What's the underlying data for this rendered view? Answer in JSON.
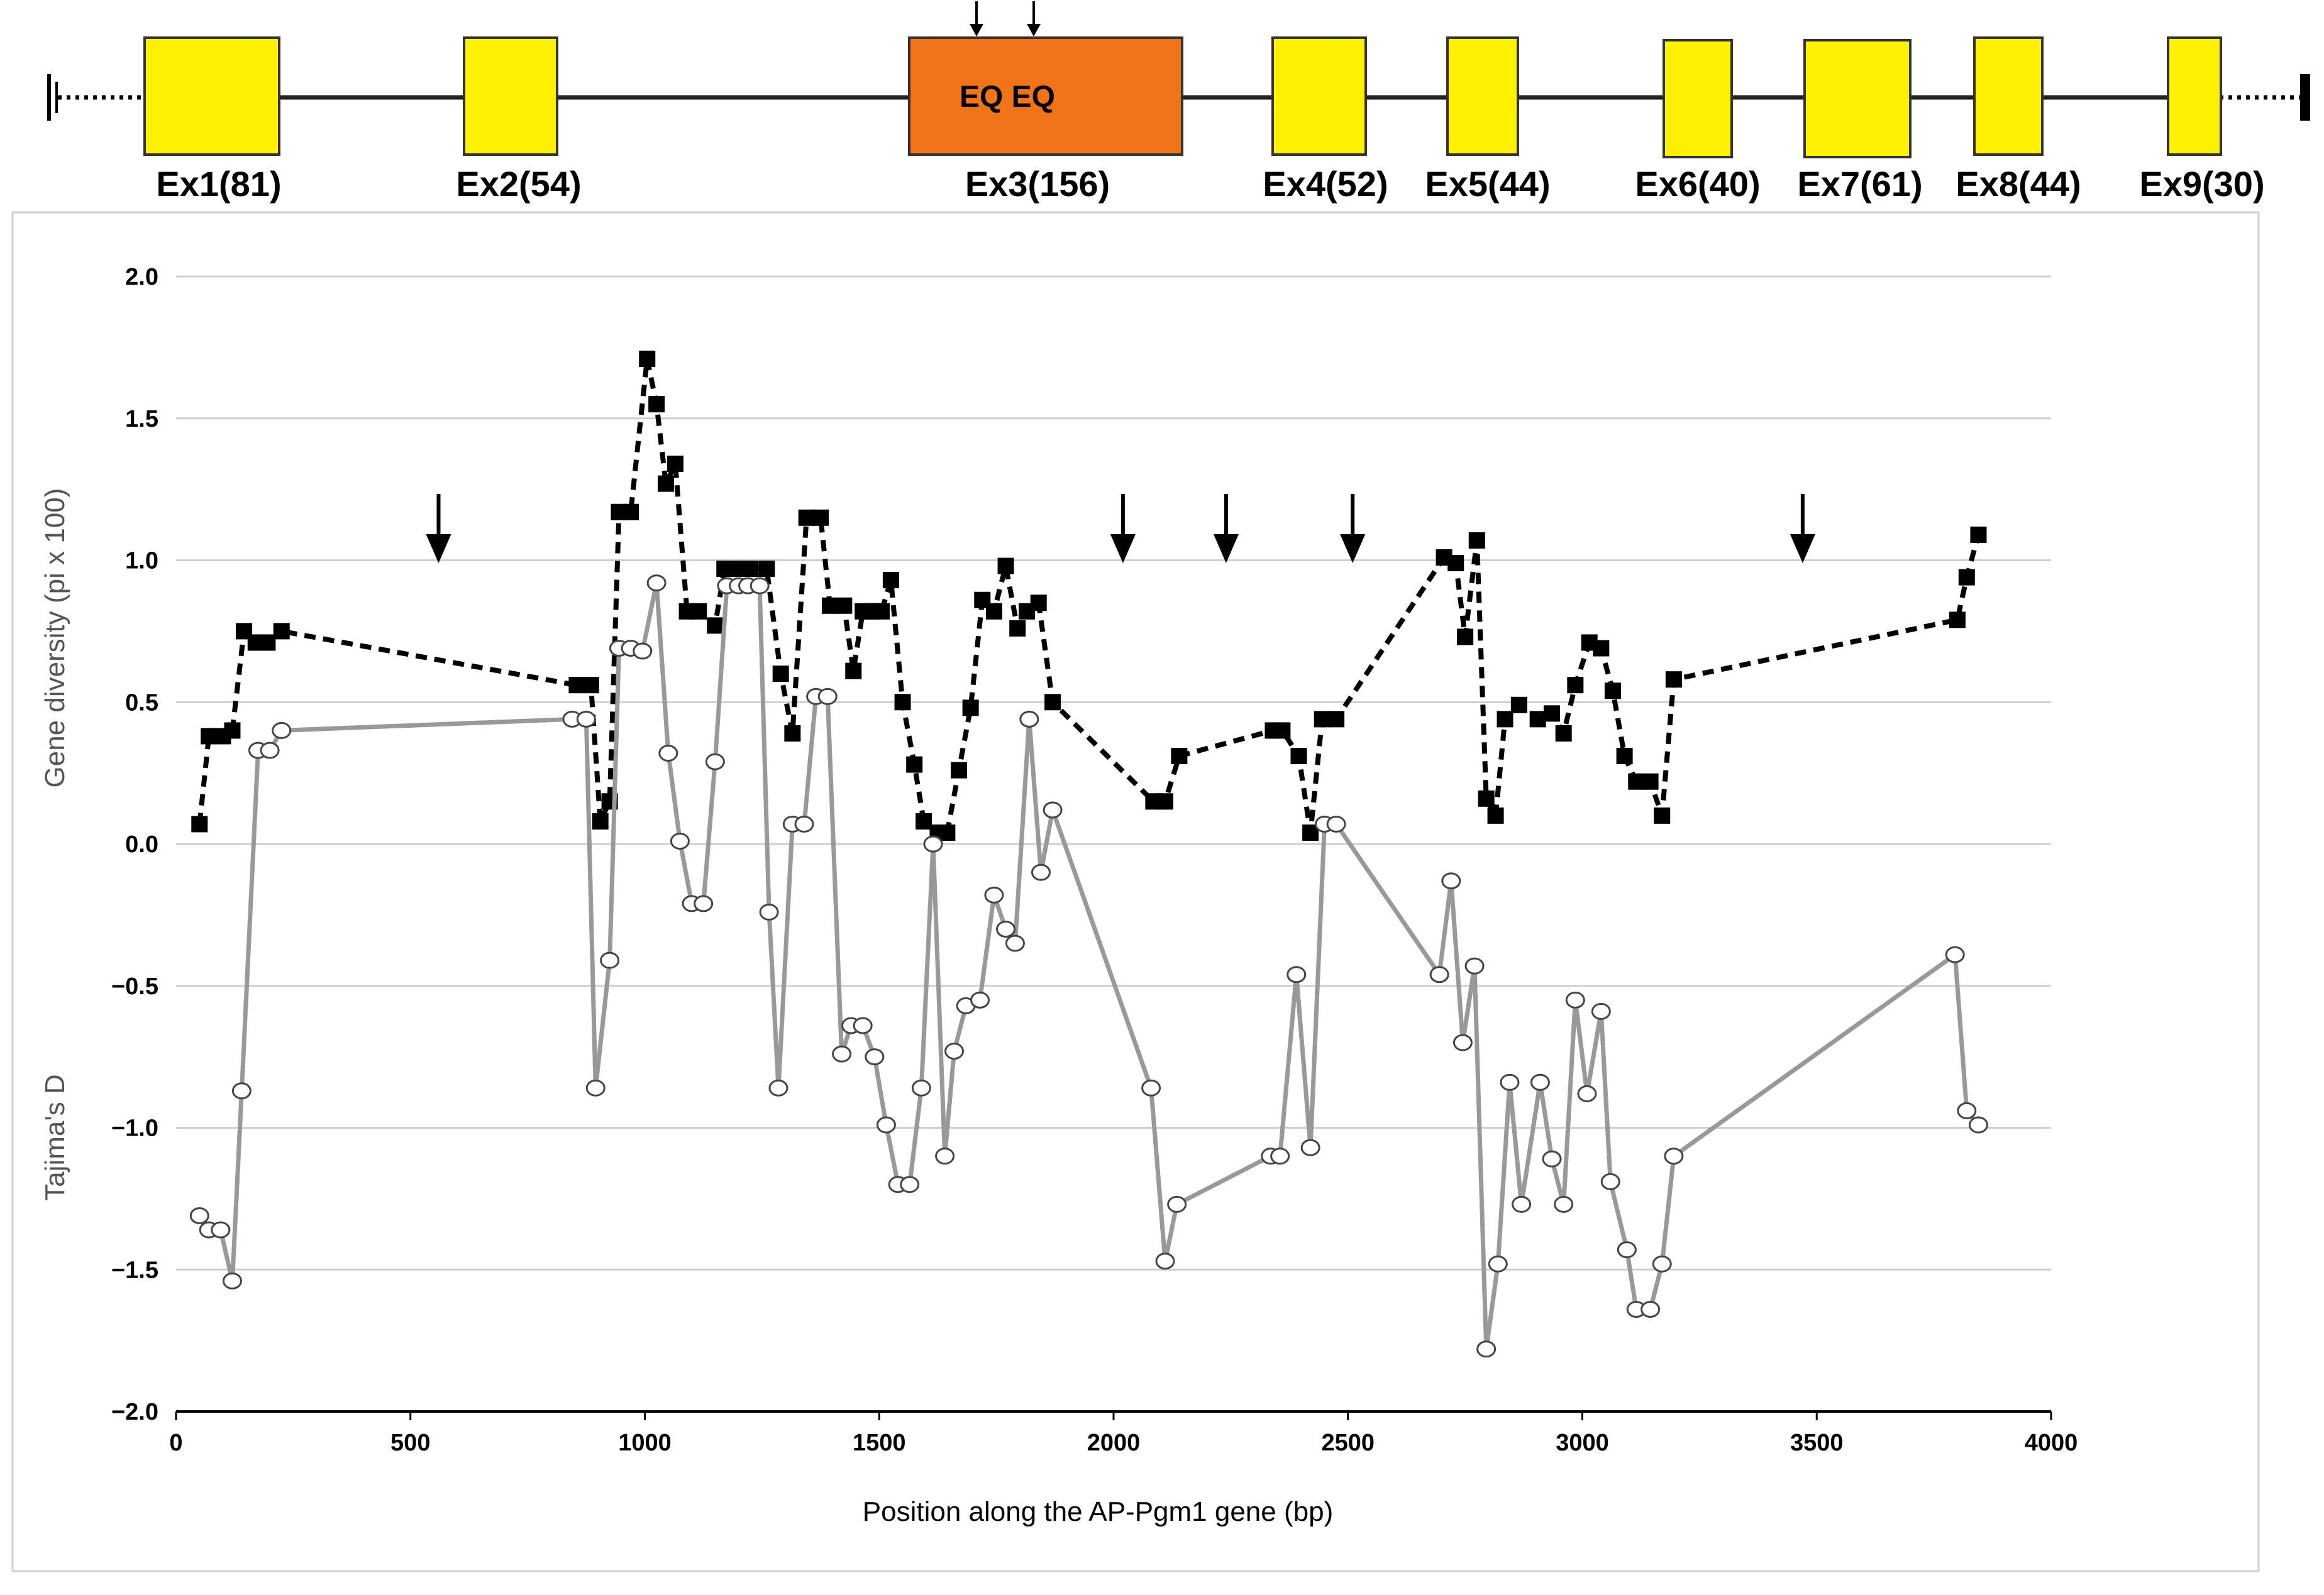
{
  "gene_model": {
    "exons": [
      {
        "name": "Ex1(81)",
        "color": "#FFF200"
      },
      {
        "name": "Ex2(54)",
        "color": "#FFF200"
      },
      {
        "name": "Ex3(156)",
        "color": "#F07417",
        "inner_label": "EQ EQ"
      },
      {
        "name": "Ex4(52)",
        "color": "#FFF200"
      },
      {
        "name": "Ex5(44)",
        "color": "#FFF200"
      },
      {
        "name": "Ex6(40)",
        "color": "#FFF200"
      },
      {
        "name": "Ex7(61)",
        "color": "#FFF200"
      },
      {
        "name": "Ex8(44)",
        "color": "#FFF200"
      },
      {
        "name": "Ex9(30)",
        "color": "#FFF200"
      }
    ]
  },
  "chart_data": {
    "type": "line",
    "xlabel": "Position along the AP-Pgm1 gene (bp)",
    "ylabel_upper": "Gene diversity (pi x 100)",
    "ylabel_lower": "Tajima's D",
    "xlim": [
      0,
      4000
    ],
    "ylim": [
      -2.0,
      2.0
    ],
    "x_ticks": [
      "0",
      "500",
      "1000",
      "1500",
      "2000",
      "2500",
      "3000",
      "3500",
      "4000"
    ],
    "y_ticks": [
      "2.0",
      "1.5",
      "1.0",
      "0.5",
      "0.0",
      "−0.5",
      "−1.0",
      "−1.5",
      "−2.0"
    ],
    "arrows_x": [
      560,
      2020,
      2240,
      2510,
      3470
    ],
    "series": [
      {
        "name": "Gene diversity (pi x 100)",
        "style": "dashed-black-square",
        "color": "#000000",
        "points": [
          [
            50,
            0.07
          ],
          [
            70,
            0.38
          ],
          [
            100,
            0.38
          ],
          [
            120,
            0.4
          ],
          [
            145,
            0.75
          ],
          [
            170,
            0.71
          ],
          [
            195,
            0.71
          ],
          [
            225,
            0.75
          ],
          [
            855,
            0.56
          ],
          [
            885,
            0.56
          ],
          [
            905,
            0.08
          ],
          [
            925,
            0.15
          ],
          [
            945,
            1.17
          ],
          [
            970,
            1.17
          ],
          [
            1005,
            1.71
          ],
          [
            1025,
            1.55
          ],
          [
            1045,
            1.27
          ],
          [
            1065,
            1.34
          ],
          [
            1090,
            0.82
          ],
          [
            1115,
            0.82
          ],
          [
            1150,
            0.77
          ],
          [
            1170,
            0.97
          ],
          [
            1200,
            0.97
          ],
          [
            1225,
            0.97
          ],
          [
            1260,
            0.97
          ],
          [
            1290,
            0.6
          ],
          [
            1315,
            0.39
          ],
          [
            1345,
            1.15
          ],
          [
            1375,
            1.15
          ],
          [
            1395,
            0.84
          ],
          [
            1425,
            0.84
          ],
          [
            1445,
            0.61
          ],
          [
            1465,
            0.82
          ],
          [
            1485,
            0.82
          ],
          [
            1505,
            0.82
          ],
          [
            1525,
            0.93
          ],
          [
            1550,
            0.5
          ],
          [
            1575,
            0.28
          ],
          [
            1595,
            0.08
          ],
          [
            1625,
            0.04
          ],
          [
            1645,
            0.04
          ],
          [
            1670,
            0.26
          ],
          [
            1695,
            0.48
          ],
          [
            1720,
            0.86
          ],
          [
            1745,
            0.82
          ],
          [
            1770,
            0.98
          ],
          [
            1795,
            0.76
          ],
          [
            1815,
            0.82
          ],
          [
            1840,
            0.85
          ],
          [
            1870,
            0.5
          ],
          [
            2085,
            0.15
          ],
          [
            2110,
            0.15
          ],
          [
            2140,
            0.31
          ],
          [
            2340,
            0.4
          ],
          [
            2360,
            0.4
          ],
          [
            2395,
            0.31
          ],
          [
            2420,
            0.04
          ],
          [
            2445,
            0.44
          ],
          [
            2475,
            0.44
          ],
          [
            2705,
            1.01
          ],
          [
            2730,
            0.99
          ],
          [
            2750,
            0.73
          ],
          [
            2775,
            1.07
          ],
          [
            2795,
            0.16
          ],
          [
            2815,
            0.1
          ],
          [
            2835,
            0.44
          ],
          [
            2865,
            0.49
          ],
          [
            2905,
            0.44
          ],
          [
            2935,
            0.46
          ],
          [
            2960,
            0.39
          ],
          [
            2985,
            0.56
          ],
          [
            3015,
            0.71
          ],
          [
            3040,
            0.69
          ],
          [
            3065,
            0.54
          ],
          [
            3090,
            0.31
          ],
          [
            3115,
            0.22
          ],
          [
            3145,
            0.22
          ],
          [
            3170,
            0.1
          ],
          [
            3195,
            0.58
          ],
          [
            3800,
            0.79
          ],
          [
            3820,
            0.94
          ],
          [
            3845,
            1.09
          ]
        ]
      },
      {
        "name": "Tajima's D",
        "style": "solid-gray-circle",
        "color": "#999999",
        "points": [
          [
            50,
            -1.31
          ],
          [
            70,
            -1.36
          ],
          [
            95,
            -1.36
          ],
          [
            120,
            -1.54
          ],
          [
            140,
            -0.87
          ],
          [
            175,
            0.33
          ],
          [
            200,
            0.33
          ],
          [
            225,
            0.4
          ],
          [
            845,
            0.44
          ],
          [
            875,
            0.44
          ],
          [
            895,
            -0.86
          ],
          [
            925,
            -0.41
          ],
          [
            945,
            0.69
          ],
          [
            970,
            0.69
          ],
          [
            995,
            0.68
          ],
          [
            1025,
            0.92
          ],
          [
            1050,
            0.32
          ],
          [
            1075,
            0.01
          ],
          [
            1100,
            -0.21
          ],
          [
            1125,
            -0.21
          ],
          [
            1150,
            0.29
          ],
          [
            1175,
            0.91
          ],
          [
            1200,
            0.91
          ],
          [
            1220,
            0.91
          ],
          [
            1245,
            0.91
          ],
          [
            1265,
            -0.24
          ],
          [
            1285,
            -0.86
          ],
          [
            1315,
            0.07
          ],
          [
            1340,
            0.07
          ],
          [
            1365,
            0.52
          ],
          [
            1390,
            0.52
          ],
          [
            1420,
            -0.74
          ],
          [
            1440,
            -0.64
          ],
          [
            1465,
            -0.64
          ],
          [
            1490,
            -0.75
          ],
          [
            1515,
            -0.99
          ],
          [
            1540,
            -1.2
          ],
          [
            1565,
            -1.2
          ],
          [
            1590,
            -0.86
          ],
          [
            1615,
            0.0
          ],
          [
            1640,
            -1.1
          ],
          [
            1660,
            -0.73
          ],
          [
            1685,
            -0.57
          ],
          [
            1715,
            -0.55
          ],
          [
            1745,
            -0.18
          ],
          [
            1770,
            -0.3
          ],
          [
            1790,
            -0.35
          ],
          [
            1820,
            0.44
          ],
          [
            1845,
            -0.1
          ],
          [
            1870,
            0.12
          ],
          [
            2080,
            -0.86
          ],
          [
            2110,
            -1.47
          ],
          [
            2135,
            -1.27
          ],
          [
            2335,
            -1.1
          ],
          [
            2355,
            -1.1
          ],
          [
            2390,
            -0.46
          ],
          [
            2420,
            -1.07
          ],
          [
            2450,
            0.07
          ],
          [
            2475,
            0.07
          ],
          [
            2695,
            -0.46
          ],
          [
            2720,
            -0.13
          ],
          [
            2745,
            -0.7
          ],
          [
            2770,
            -0.43
          ],
          [
            2795,
            -1.78
          ],
          [
            2820,
            -1.48
          ],
          [
            2845,
            -0.84
          ],
          [
            2870,
            -1.27
          ],
          [
            2910,
            -0.84
          ],
          [
            2935,
            -1.11
          ],
          [
            2960,
            -1.27
          ],
          [
            2985,
            -0.55
          ],
          [
            3010,
            -0.88
          ],
          [
            3040,
            -0.59
          ],
          [
            3060,
            -1.19
          ],
          [
            3095,
            -1.43
          ],
          [
            3115,
            -1.64
          ],
          [
            3145,
            -1.64
          ],
          [
            3170,
            -1.48
          ],
          [
            3195,
            -1.1
          ],
          [
            3795,
            -0.39
          ],
          [
            3820,
            -0.94
          ],
          [
            3845,
            -0.99
          ]
        ]
      }
    ]
  }
}
